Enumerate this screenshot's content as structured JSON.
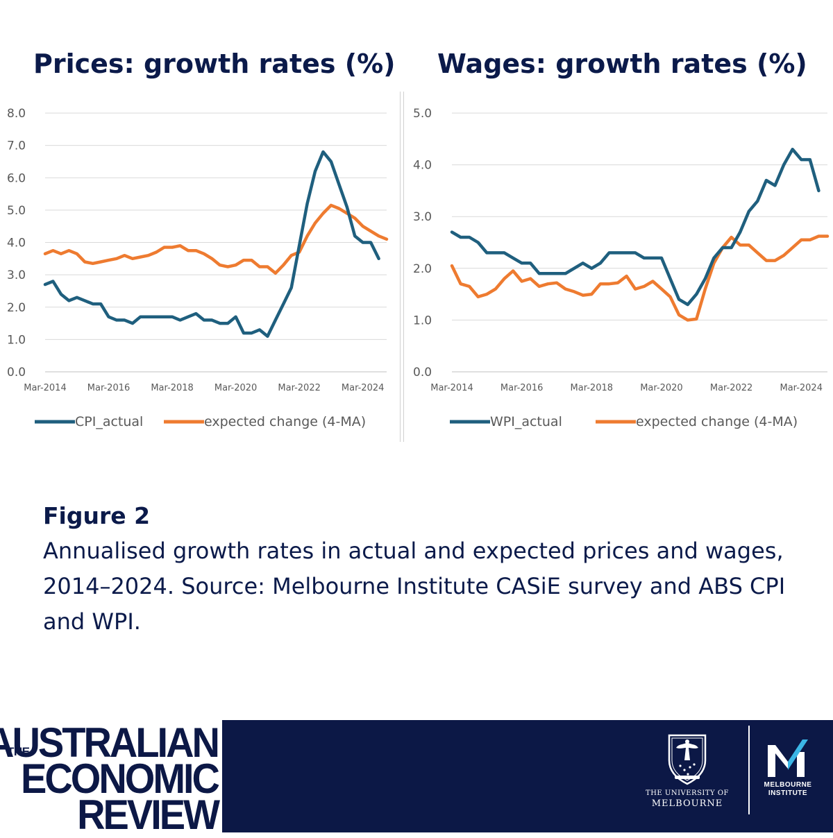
{
  "chart_data": [
    {
      "type": "line",
      "title": "Prices: growth rates (%)",
      "xlabel": "",
      "ylabel": "",
      "x_tick_labels": [
        "Mar-2014",
        "Mar-2016",
        "Mar-2018",
        "Mar-2020",
        "Mar-2022",
        "Mar-2024"
      ],
      "y_tick_labels": [
        "0.0",
        "1.0",
        "2.0",
        "3.0",
        "4.0",
        "5.0",
        "6.0",
        "7.0",
        "8.0"
      ],
      "ylim": [
        0,
        8
      ],
      "grid": true,
      "legend_position": "bottom",
      "x": [
        "Mar-2014",
        "Jun-2014",
        "Sep-2014",
        "Dec-2014",
        "Mar-2015",
        "Jun-2015",
        "Sep-2015",
        "Dec-2015",
        "Mar-2016",
        "Jun-2016",
        "Sep-2016",
        "Dec-2016",
        "Mar-2017",
        "Jun-2017",
        "Sep-2017",
        "Dec-2017",
        "Mar-2018",
        "Jun-2018",
        "Sep-2018",
        "Dec-2018",
        "Mar-2019",
        "Jun-2019",
        "Sep-2019",
        "Dec-2019",
        "Mar-2020",
        "Jun-2020",
        "Sep-2020",
        "Dec-2020",
        "Mar-2021",
        "Jun-2021",
        "Sep-2021",
        "Dec-2021",
        "Mar-2022",
        "Jun-2022",
        "Sep-2022",
        "Dec-2022",
        "Mar-2023",
        "Jun-2023",
        "Sep-2023",
        "Dec-2023",
        "Mar-2024",
        "Jun-2024",
        "Sep-2024",
        "Dec-2024"
      ],
      "series": [
        {
          "name": "CPI_actual",
          "color": "#1f5f7e",
          "values": [
            2.7,
            2.8,
            2.4,
            2.2,
            2.3,
            2.2,
            2.1,
            2.1,
            1.7,
            1.6,
            1.6,
            1.5,
            1.7,
            1.7,
            1.7,
            1.7,
            1.7,
            1.6,
            1.7,
            1.8,
            1.6,
            1.6,
            1.5,
            1.5,
            1.7,
            1.2,
            1.2,
            1.3,
            1.1,
            1.6,
            2.1,
            2.6,
            3.9,
            5.2,
            6.2,
            6.8,
            6.5,
            5.8,
            5.1,
            4.2,
            4.0,
            4.0,
            3.5,
            null
          ]
        },
        {
          "name": "expected change (4-MA)",
          "color": "#ee7b30",
          "values": [
            3.65,
            3.75,
            3.65,
            3.75,
            3.65,
            3.4,
            3.35,
            3.4,
            3.45,
            3.5,
            3.6,
            3.5,
            3.55,
            3.6,
            3.7,
            3.85,
            3.85,
            3.9,
            3.75,
            3.75,
            3.65,
            3.5,
            3.3,
            3.25,
            3.3,
            3.45,
            3.45,
            3.25,
            3.25,
            3.05,
            3.3,
            3.6,
            3.7,
            4.2,
            4.6,
            4.9,
            5.15,
            5.05,
            4.9,
            4.75,
            4.5,
            4.35,
            4.2,
            4.1
          ]
        }
      ]
    },
    {
      "type": "line",
      "title": "Wages: growth rates (%)",
      "xlabel": "",
      "ylabel": "",
      "x_tick_labels": [
        "Mar-2014",
        "Mar-2016",
        "Mar-2018",
        "Mar-2020",
        "Mar-2022",
        "Mar-2024"
      ],
      "y_tick_labels": [
        "0.0",
        "1.0",
        "2.0",
        "3.0",
        "4.0",
        "5.0"
      ],
      "ylim": [
        0,
        5
      ],
      "grid": true,
      "legend_position": "bottom",
      "x": [
        "Mar-2014",
        "Jun-2014",
        "Sep-2014",
        "Dec-2014",
        "Mar-2015",
        "Jun-2015",
        "Sep-2015",
        "Dec-2015",
        "Mar-2016",
        "Jun-2016",
        "Sep-2016",
        "Dec-2016",
        "Mar-2017",
        "Jun-2017",
        "Sep-2017",
        "Dec-2017",
        "Mar-2018",
        "Jun-2018",
        "Sep-2018",
        "Dec-2018",
        "Mar-2019",
        "Jun-2019",
        "Sep-2019",
        "Dec-2019",
        "Mar-2020",
        "Jun-2020",
        "Sep-2020",
        "Dec-2020",
        "Mar-2021",
        "Jun-2021",
        "Sep-2021",
        "Dec-2021",
        "Mar-2022",
        "Jun-2022",
        "Sep-2022",
        "Dec-2022",
        "Mar-2023",
        "Jun-2023",
        "Sep-2023",
        "Dec-2023",
        "Mar-2024",
        "Jun-2024",
        "Sep-2024",
        "Dec-2024"
      ],
      "series": [
        {
          "name": "WPI_actual",
          "color": "#1f5f7e",
          "values": [
            2.7,
            2.6,
            2.6,
            2.5,
            2.3,
            2.3,
            2.3,
            2.2,
            2.1,
            2.1,
            1.9,
            1.9,
            1.9,
            1.9,
            2.0,
            2.1,
            2.0,
            2.1,
            2.3,
            2.3,
            2.3,
            2.3,
            2.2,
            2.2,
            2.2,
            1.8,
            1.4,
            1.3,
            1.5,
            1.8,
            2.2,
            2.4,
            2.4,
            2.7,
            3.1,
            3.3,
            3.7,
            3.6,
            4.0,
            4.3,
            4.1,
            4.1,
            3.5,
            null
          ]
        },
        {
          "name": "expected change (4-MA)",
          "color": "#ee7b30",
          "values": [
            2.05,
            1.7,
            1.65,
            1.45,
            1.5,
            1.6,
            1.8,
            1.95,
            1.75,
            1.8,
            1.65,
            1.7,
            1.72,
            1.6,
            1.55,
            1.48,
            1.5,
            1.7,
            1.7,
            1.72,
            1.85,
            1.6,
            1.65,
            1.75,
            1.6,
            1.45,
            1.1,
            1.0,
            1.02,
            1.6,
            2.1,
            2.4,
            2.6,
            2.45,
            2.45,
            2.3,
            2.15,
            2.15,
            2.25,
            2.4,
            2.55,
            2.55,
            2.62,
            2.62
          ]
        }
      ]
    }
  ],
  "caption": {
    "title": "Figure 2",
    "text": "Annualised growth rates in actual and expected prices and wages, 2014–2024. Source: Melbourne Institute CASiE survey and ABS CPI and WPI."
  },
  "footer": {
    "aer_logo": {
      "line0": "THE",
      "line1": "AUSTRALIAN",
      "line2": "ECONOMIC",
      "line3": "REVIEW"
    },
    "uom_logo": {
      "line1": "THE UNIVERSITY OF",
      "line2": "MELBOURNE"
    },
    "mi_logo": {
      "line1": "MELBOURNE",
      "line2": "INSTITUTE"
    },
    "band_color": "#0c1846"
  }
}
